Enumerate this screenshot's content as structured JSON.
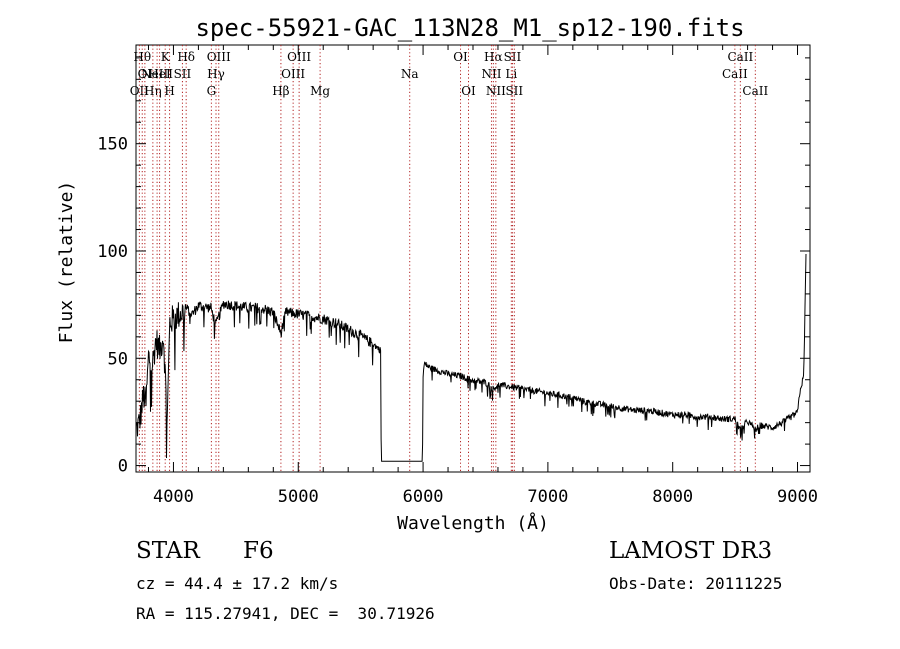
{
  "chart_data": {
    "type": "line",
    "title": "spec-55921-GAC_113N28_M1_sp12-190.fits",
    "xlabel": "Wavelength (Å)",
    "ylabel": "Flux (relative)",
    "xlim": [
      3700,
      9100
    ],
    "ylim": [
      -3,
      196
    ],
    "xticks": [
      4000,
      5000,
      6000,
      7000,
      8000,
      9000
    ],
    "yticks": [
      0,
      50,
      100,
      150
    ],
    "series": [
      {
        "name": "spectrum",
        "x": [
          3700,
          3730,
          3760,
          3780,
          3800,
          3830,
          3860,
          3890,
          3920,
          3950,
          3970,
          4000,
          4050,
          4100,
          4150,
          4200,
          4300,
          4340,
          4400,
          4500,
          4600,
          4700,
          4800,
          4861,
          4900,
          5000,
          5100,
          5200,
          5300,
          5400,
          5500,
          5600,
          5640,
          5660,
          5665,
          5700,
          5800,
          5900,
          5995,
          6000,
          6010,
          6050,
          6100,
          6200,
          6300,
          6400,
          6500,
          6563,
          6600,
          6700,
          6800,
          6900,
          7000,
          7100,
          7200,
          7300,
          7400,
          7500,
          7600,
          7700,
          7800,
          7900,
          8000,
          8100,
          8200,
          8300,
          8400,
          8500,
          8540,
          8600,
          8662,
          8700,
          8800,
          8900,
          9000,
          9020,
          9050,
          9070
        ],
        "y": [
          18,
          22,
          34,
          30,
          52,
          48,
          60,
          55,
          62,
          22,
          68,
          70,
          72,
          74,
          71,
          75,
          74,
          66,
          76,
          75,
          74,
          74,
          72,
          62,
          72,
          71,
          70,
          69,
          67,
          64,
          61,
          57,
          55,
          54,
          2,
          2,
          2,
          2,
          2,
          42,
          48,
          46,
          45,
          43,
          42,
          40,
          39,
          36,
          38,
          37,
          36,
          35,
          34,
          33,
          32,
          30,
          29,
          28,
          27,
          26,
          26,
          25,
          24,
          24,
          23,
          23,
          22,
          22,
          17,
          21,
          17,
          19,
          18,
          21,
          25,
          35,
          42,
          105
        ]
      }
    ],
    "lines": [
      {
        "w": 3727,
        "labels": [
          "OII"
        ],
        "row": 2
      },
      {
        "w": 3750,
        "labels": [
          "Hθ"
        ],
        "row": 0
      },
      {
        "w": 3771,
        "labels": [
          "OI"
        ],
        "row": 1
      },
      {
        "w": 3835,
        "labels": [
          "Hη"
        ],
        "row": 2
      },
      {
        "w": 3869,
        "labels": [
          "NeIII"
        ],
        "row": 1
      },
      {
        "w": 3889,
        "labels": [
          "HeI"
        ],
        "row": 1
      },
      {
        "w": 3934,
        "labels": [
          "K"
        ],
        "row": 0
      },
      {
        "w": 3969,
        "labels": [
          "H"
        ],
        "row": 2
      },
      {
        "w": 4072,
        "labels": [
          "SII"
        ],
        "row": 1
      },
      {
        "w": 4102,
        "labels": [
          "Hδ"
        ],
        "row": 0
      },
      {
        "w": 4304,
        "labels": [
          "G"
        ],
        "row": 2
      },
      {
        "w": 4341,
        "labels": [
          "Hγ"
        ],
        "row": 1
      },
      {
        "w": 4363,
        "labels": [
          "OIII"
        ],
        "row": 0
      },
      {
        "w": 4861,
        "labels": [
          "Hβ"
        ],
        "row": 2
      },
      {
        "w": 4959,
        "labels": [
          "OIII"
        ],
        "row": 1
      },
      {
        "w": 5007,
        "labels": [
          "OIII"
        ],
        "row": 0
      },
      {
        "w": 5175,
        "labels": [
          "Mg"
        ],
        "row": 2
      },
      {
        "w": 5893,
        "labels": [
          "Na"
        ],
        "row": 1
      },
      {
        "w": 6300,
        "labels": [
          "OI"
        ],
        "row": 0
      },
      {
        "w": 6364,
        "labels": [
          "OI"
        ],
        "row": 2
      },
      {
        "w": 6548,
        "labels": [
          "NII"
        ],
        "row": 1
      },
      {
        "w": 6563,
        "labels": [
          "Hα"
        ],
        "row": 0
      },
      {
        "w": 6583,
        "labels": [
          "NII"
        ],
        "row": 2
      },
      {
        "w": 6707,
        "labels": [
          "Li"
        ],
        "row": 1
      },
      {
        "w": 6716,
        "labels": [
          "SII"
        ],
        "row": 0
      },
      {
        "w": 6731,
        "labels": [
          "SII"
        ],
        "row": 2
      },
      {
        "w": 8498,
        "labels": [
          "CaII"
        ],
        "row": 1
      },
      {
        "w": 8542,
        "labels": [
          "CaII"
        ],
        "row": 0
      },
      {
        "w": 8662,
        "labels": [
          "CaII"
        ],
        "row": 2
      }
    ]
  },
  "info": {
    "class_label": "STAR",
    "subclass": "F6",
    "survey": "LAMOST DR3",
    "cz": "cz = 44.4 ± 17.2 km/s",
    "obs_date": "Obs-Date: 20111225",
    "coords": "RA = 115.27941, DEC =  30.71926"
  }
}
